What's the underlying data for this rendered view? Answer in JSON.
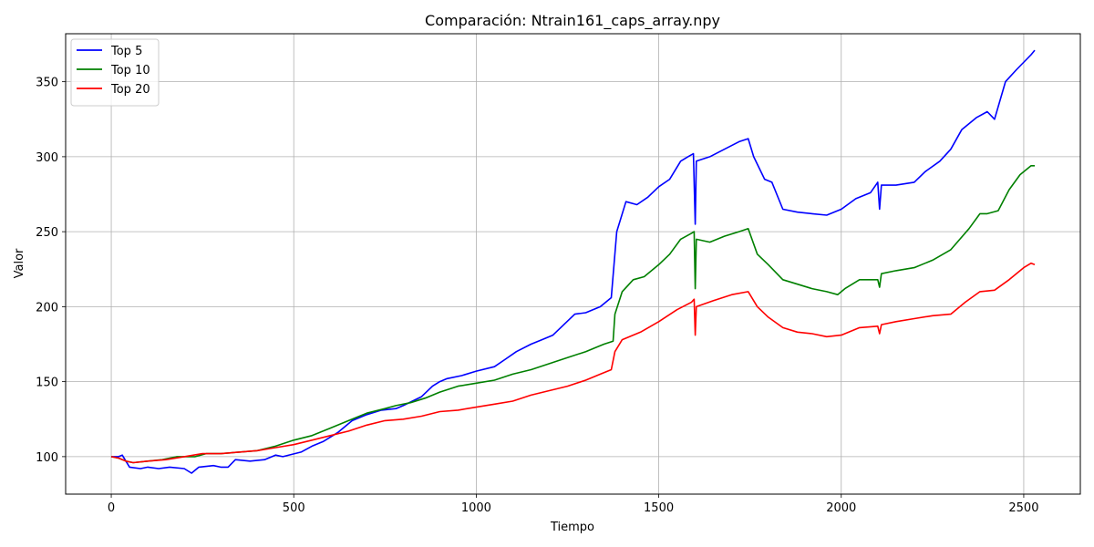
{
  "chart_data": {
    "type": "line",
    "title": "Comparación: Ntrain161_caps_array.npy",
    "xlabel": "Tiempo",
    "ylabel": "Valor",
    "xlim": [
      -125,
      2655
    ],
    "ylim": [
      75,
      382
    ],
    "xticks": [
      0,
      500,
      1000,
      1500,
      2000,
      2500
    ],
    "yticks": [
      100,
      150,
      200,
      250,
      300,
      350
    ],
    "grid": true,
    "legend_position": "upper-left",
    "series": [
      {
        "name": "Top 5",
        "color": "#0000ff",
        "points": [
          [
            0,
            100
          ],
          [
            10,
            100
          ],
          [
            20,
            100
          ],
          [
            30,
            101
          ],
          [
            40,
            97
          ],
          [
            50,
            93
          ],
          [
            80,
            92
          ],
          [
            100,
            93
          ],
          [
            130,
            92
          ],
          [
            160,
            93
          ],
          [
            200,
            92
          ],
          [
            220,
            89
          ],
          [
            240,
            93
          ],
          [
            280,
            94
          ],
          [
            300,
            93
          ],
          [
            320,
            93
          ],
          [
            340,
            98
          ],
          [
            380,
            97
          ],
          [
            420,
            98
          ],
          [
            450,
            101
          ],
          [
            470,
            100
          ],
          [
            520,
            103
          ],
          [
            550,
            107
          ],
          [
            580,
            110
          ],
          [
            620,
            116
          ],
          [
            660,
            124
          ],
          [
            700,
            128
          ],
          [
            740,
            131
          ],
          [
            780,
            132
          ],
          [
            800,
            134
          ],
          [
            850,
            140
          ],
          [
            880,
            147
          ],
          [
            900,
            150
          ],
          [
            920,
            152
          ],
          [
            960,
            154
          ],
          [
            1000,
            157
          ],
          [
            1050,
            160
          ],
          [
            1080,
            165
          ],
          [
            1110,
            170
          ],
          [
            1150,
            175
          ],
          [
            1180,
            178
          ],
          [
            1210,
            181
          ],
          [
            1240,
            188
          ],
          [
            1270,
            195
          ],
          [
            1300,
            196
          ],
          [
            1340,
            200
          ],
          [
            1370,
            206
          ],
          [
            1385,
            250
          ],
          [
            1410,
            270
          ],
          [
            1440,
            268
          ],
          [
            1470,
            273
          ],
          [
            1500,
            280
          ],
          [
            1530,
            285
          ],
          [
            1560,
            297
          ],
          [
            1580,
            300
          ],
          [
            1595,
            302
          ],
          [
            1600,
            255
          ],
          [
            1603,
            297
          ],
          [
            1640,
            300
          ],
          [
            1680,
            305
          ],
          [
            1720,
            310
          ],
          [
            1745,
            312
          ],
          [
            1760,
            300
          ],
          [
            1790,
            285
          ],
          [
            1810,
            283
          ],
          [
            1840,
            265
          ],
          [
            1880,
            263
          ],
          [
            1920,
            262
          ],
          [
            1960,
            261
          ],
          [
            2000,
            265
          ],
          [
            2040,
            272
          ],
          [
            2080,
            276
          ],
          [
            2100,
            283
          ],
          [
            2105,
            265
          ],
          [
            2110,
            281
          ],
          [
            2150,
            281
          ],
          [
            2200,
            283
          ],
          [
            2230,
            290
          ],
          [
            2270,
            297
          ],
          [
            2300,
            305
          ],
          [
            2330,
            318
          ],
          [
            2370,
            326
          ],
          [
            2400,
            330
          ],
          [
            2420,
            325
          ],
          [
            2450,
            350
          ],
          [
            2480,
            358
          ],
          [
            2520,
            368
          ],
          [
            2530,
            371
          ]
        ]
      },
      {
        "name": "Top 10",
        "color": "#008000",
        "points": [
          [
            0,
            100
          ],
          [
            20,
            99
          ],
          [
            40,
            97
          ],
          [
            60,
            96
          ],
          [
            100,
            97
          ],
          [
            140,
            98
          ],
          [
            180,
            100
          ],
          [
            230,
            100
          ],
          [
            260,
            102
          ],
          [
            300,
            102
          ],
          [
            350,
            103
          ],
          [
            400,
            104
          ],
          [
            450,
            107
          ],
          [
            500,
            111
          ],
          [
            550,
            114
          ],
          [
            600,
            119
          ],
          [
            650,
            124
          ],
          [
            700,
            129
          ],
          [
            750,
            132
          ],
          [
            780,
            134
          ],
          [
            820,
            136
          ],
          [
            860,
            139
          ],
          [
            900,
            143
          ],
          [
            950,
            147
          ],
          [
            1000,
            149
          ],
          [
            1050,
            151
          ],
          [
            1100,
            155
          ],
          [
            1150,
            158
          ],
          [
            1200,
            162
          ],
          [
            1250,
            166
          ],
          [
            1300,
            170
          ],
          [
            1350,
            175
          ],
          [
            1375,
            177
          ],
          [
            1380,
            195
          ],
          [
            1400,
            210
          ],
          [
            1430,
            218
          ],
          [
            1460,
            220
          ],
          [
            1500,
            228
          ],
          [
            1530,
            235
          ],
          [
            1560,
            245
          ],
          [
            1590,
            249
          ],
          [
            1597,
            250
          ],
          [
            1600,
            212
          ],
          [
            1603,
            245
          ],
          [
            1640,
            243
          ],
          [
            1680,
            247
          ],
          [
            1720,
            250
          ],
          [
            1745,
            252
          ],
          [
            1770,
            235
          ],
          [
            1800,
            228
          ],
          [
            1840,
            218
          ],
          [
            1880,
            215
          ],
          [
            1920,
            212
          ],
          [
            1960,
            210
          ],
          [
            1990,
            208
          ],
          [
            2010,
            212
          ],
          [
            2050,
            218
          ],
          [
            2100,
            218
          ],
          [
            2105,
            213
          ],
          [
            2110,
            222
          ],
          [
            2150,
            224
          ],
          [
            2200,
            226
          ],
          [
            2250,
            231
          ],
          [
            2300,
            238
          ],
          [
            2350,
            252
          ],
          [
            2380,
            262
          ],
          [
            2400,
            262
          ],
          [
            2430,
            264
          ],
          [
            2460,
            278
          ],
          [
            2490,
            288
          ],
          [
            2520,
            294
          ],
          [
            2530,
            294
          ]
        ]
      },
      {
        "name": "Top 20",
        "color": "#ff0000",
        "points": [
          [
            0,
            100
          ],
          [
            20,
            99
          ],
          [
            40,
            97
          ],
          [
            60,
            96
          ],
          [
            100,
            97
          ],
          [
            150,
            98
          ],
          [
            200,
            100
          ],
          [
            250,
            102
          ],
          [
            300,
            102
          ],
          [
            350,
            103
          ],
          [
            400,
            104
          ],
          [
            450,
            106
          ],
          [
            500,
            108
          ],
          [
            550,
            111
          ],
          [
            600,
            114
          ],
          [
            650,
            117
          ],
          [
            700,
            121
          ],
          [
            750,
            124
          ],
          [
            800,
            125
          ],
          [
            850,
            127
          ],
          [
            900,
            130
          ],
          [
            950,
            131
          ],
          [
            1000,
            133
          ],
          [
            1050,
            135
          ],
          [
            1100,
            137
          ],
          [
            1150,
            141
          ],
          [
            1200,
            144
          ],
          [
            1250,
            147
          ],
          [
            1300,
            151
          ],
          [
            1340,
            155
          ],
          [
            1370,
            158
          ],
          [
            1380,
            170
          ],
          [
            1400,
            178
          ],
          [
            1450,
            183
          ],
          [
            1500,
            190
          ],
          [
            1550,
            198
          ],
          [
            1590,
            203
          ],
          [
            1597,
            205
          ],
          [
            1600,
            181
          ],
          [
            1603,
            200
          ],
          [
            1650,
            204
          ],
          [
            1700,
            208
          ],
          [
            1745,
            210
          ],
          [
            1770,
            200
          ],
          [
            1800,
            193
          ],
          [
            1840,
            186
          ],
          [
            1880,
            183
          ],
          [
            1920,
            182
          ],
          [
            1960,
            180
          ],
          [
            2000,
            181
          ],
          [
            2050,
            186
          ],
          [
            2100,
            187
          ],
          [
            2105,
            182
          ],
          [
            2110,
            188
          ],
          [
            2150,
            190
          ],
          [
            2200,
            192
          ],
          [
            2250,
            194
          ],
          [
            2300,
            195
          ],
          [
            2340,
            203
          ],
          [
            2380,
            210
          ],
          [
            2420,
            211
          ],
          [
            2460,
            218
          ],
          [
            2500,
            226
          ],
          [
            2520,
            229
          ],
          [
            2530,
            228
          ]
        ]
      }
    ]
  }
}
